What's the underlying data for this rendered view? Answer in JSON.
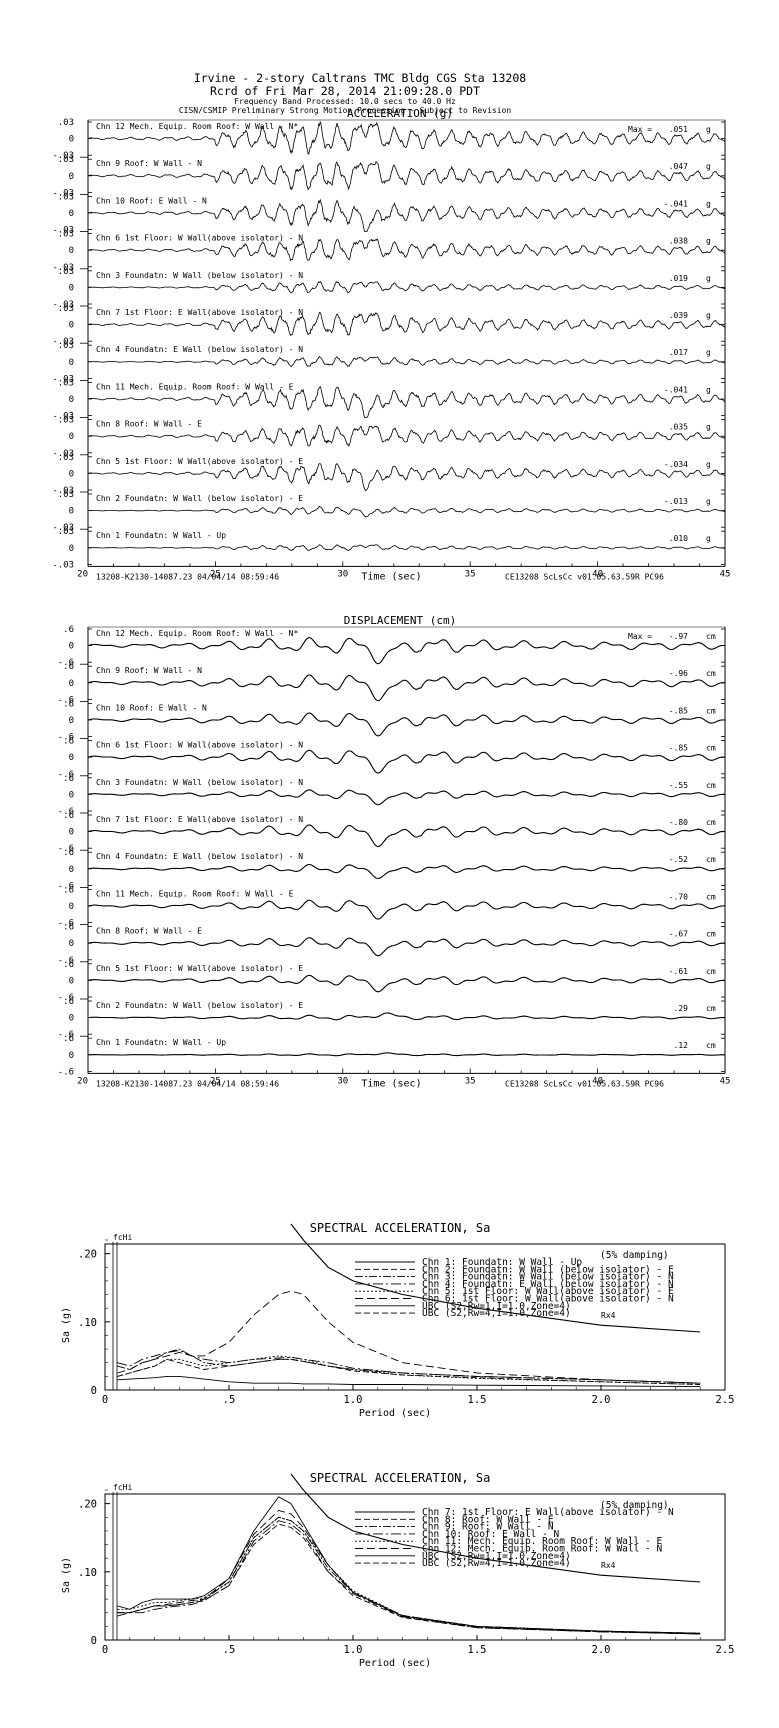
{
  "header": {
    "line1": "Irvine - 2-story Caltrans TMC Bldg      CGS Sta 13208",
    "line2": "Rcrd of Fri Mar 28, 2014 21:09:28.0 PDT",
    "line3": "Frequency Band Processed: 10.0 secs to 40.0 Hz",
    "line4": "CISN/CSMIP Preliminary Strong Motion Processing - Subject to Revision"
  },
  "channels": [
    {
      "label": "Chn 12  Mech. Equip. Room Roof: W Wall - N*",
      "acc_max": ".051",
      "disp_max": "-.97"
    },
    {
      "label": "Chn 9  Roof: W Wall - N",
      "acc_max": ".047",
      "disp_max": "-.96"
    },
    {
      "label": "Chn 10  Roof: E Wall - N",
      "acc_max": "-.041",
      "disp_max": "-.85"
    },
    {
      "label": "Chn 6  1st Floor: W Wall(above isolator) - N",
      "acc_max": ".038",
      "disp_max": "-.85"
    },
    {
      "label": "Chn 3  Foundatn: W Wall (below isolator) - N",
      "acc_max": ".019",
      "disp_max": "-.55"
    },
    {
      "label": "Chn 7  1st Floor: E Wall(above isolator) - N",
      "acc_max": ".039",
      "disp_max": "-.80"
    },
    {
      "label": "Chn 4  Foundatn: E Wall (below isolator) - N",
      "acc_max": ".017",
      "disp_max": "-.52"
    },
    {
      "label": "Chn 11  Mech. Equip. Room Roof: W Wall - E",
      "acc_max": "-.041",
      "disp_max": "-.70"
    },
    {
      "label": "Chn 8  Roof: W Wall - E",
      "acc_max": ".035",
      "disp_max": "-.67"
    },
    {
      "label": "Chn 5  1st Floor: W Wall(above isolator) - E",
      "acc_max": "-.034",
      "disp_max": "-.61"
    },
    {
      "label": "Chn 2  Foundatn: W Wall (below isolator) - E",
      "acc_max": "-.013",
      "disp_max": ".29"
    },
    {
      "label": "Chn 1  Foundatn: W Wall - Up",
      "acc_max": ".010",
      "disp_max": ".12"
    }
  ],
  "acceleration": {
    "title": "ACCELERATION (g)",
    "max_label": "Max =",
    "unit": "g",
    "y_ticks": [
      ".03",
      "0",
      "-.03"
    ],
    "x_ticks": [
      "20",
      "25",
      "30",
      "35",
      "40",
      "45"
    ],
    "xlabel": "Time (sec)",
    "footer_left": "13208-K2130-14087.23 04/04/14 08:59:46",
    "footer_right": "CE13208  ScLsCc  v01.05.63.59R PC96"
  },
  "displacement": {
    "title": "DISPLACEMENT (cm)",
    "max_label": "Max =",
    "unit": "cm",
    "y_ticks": [
      ".6",
      "0",
      "-.6"
    ],
    "x_ticks": [
      "20",
      "25",
      "30",
      "35",
      "40",
      "45"
    ],
    "xlabel": "Time (sec)",
    "footer_left": "13208-K2130-14087.23 04/04/14 08:59:46",
    "footer_right": "CE13208  ScLsCc  v01.05.63.59R PC96"
  },
  "spectra": [
    {
      "title": "SPECTRAL ACCELERATION, Sa",
      "fchi": "fcHi",
      "damping": "(5% damping)",
      "ylabel": "Sa (g)",
      "xlabel": "Period (sec)",
      "y_ticks": [
        ".20",
        ".10",
        "0"
      ],
      "x_ticks": [
        "0",
        ".5",
        "1.0",
        "1.5",
        "2.0",
        "2.5"
      ],
      "rx_label": "Rx4",
      "legend": [
        "Chn 1: Foundatn: W Wall - Up",
        "Chn 2: Foundatn: W Wall (below isolator) - E",
        "Chn 3: Foundatn: W Wall (below isolator) - N",
        "Chn 4: Foundatn: E Wall (below isolator) - N",
        "Chn 5: 1st Floor: W Wall(above isolator) - E",
        "Chn 6: 1st Floor: W Wall(above isolator) - N",
        "UBC (S2,Rw=1,I=1.0,Zone=4)",
        "UBC (S2,Rw=4,I=1.0,Zone=4)"
      ]
    },
    {
      "title": "SPECTRAL ACCELERATION, Sa",
      "fchi": "fcHi",
      "damping": "(5% damping)",
      "ylabel": "Sa (g)",
      "xlabel": "Period (sec)",
      "y_ticks": [
        ".20",
        ".10",
        "0"
      ],
      "x_ticks": [
        "0",
        ".5",
        "1.0",
        "1.5",
        "2.0",
        "2.5"
      ],
      "rx_label": "Rx4",
      "legend": [
        "Chn 7: 1st Floor: E Wall(above isolator) - N",
        "Chn 8: Roof: W Wall - E",
        "Chn 9: Roof: W Wall - N",
        "Chn 10: Roof: E Wall - N",
        "Chn 11: Mech. Equip. Room Roof: W Wall - E",
        "Chn 12: Mech. Equip. Room Roof: W Wall - N",
        "UBC (S2,Rw=1,I=1.0,Zone=4)",
        "UBC (S2,Rw=4,I=1.0,Zone=4)"
      ]
    }
  ],
  "chart_data": [
    {
      "type": "line",
      "title": "ACCELERATION (g)",
      "xlabel": "Time (sec)",
      "ylabel": "",
      "xlim": [
        20,
        45
      ],
      "ylim": [
        -0.03,
        0.03
      ],
      "note": "12 stacked seismogram panels; peak values per channel",
      "series": [
        {
          "name": "Chn 12",
          "peak": 0.051
        },
        {
          "name": "Chn 9",
          "peak": 0.047
        },
        {
          "name": "Chn 10",
          "peak": -0.041
        },
        {
          "name": "Chn 6",
          "peak": 0.038
        },
        {
          "name": "Chn 3",
          "peak": 0.019
        },
        {
          "name": "Chn 7",
          "peak": 0.039
        },
        {
          "name": "Chn 4",
          "peak": 0.017
        },
        {
          "name": "Chn 11",
          "peak": -0.041
        },
        {
          "name": "Chn 8",
          "peak": 0.035
        },
        {
          "name": "Chn 5",
          "peak": -0.034
        },
        {
          "name": "Chn 2",
          "peak": -0.013
        },
        {
          "name": "Chn 1",
          "peak": 0.01
        }
      ]
    },
    {
      "type": "line",
      "title": "DISPLACEMENT (cm)",
      "xlabel": "Time (sec)",
      "ylabel": "",
      "xlim": [
        20,
        45
      ],
      "ylim": [
        -0.6,
        0.6
      ],
      "series": [
        {
          "name": "Chn 12",
          "peak": -0.97
        },
        {
          "name": "Chn 9",
          "peak": -0.96
        },
        {
          "name": "Chn 10",
          "peak": -0.85
        },
        {
          "name": "Chn 6",
          "peak": -0.85
        },
        {
          "name": "Chn 3",
          "peak": -0.55
        },
        {
          "name": "Chn 7",
          "peak": -0.8
        },
        {
          "name": "Chn 4",
          "peak": -0.52
        },
        {
          "name": "Chn 11",
          "peak": -0.7
        },
        {
          "name": "Chn 8",
          "peak": -0.67
        },
        {
          "name": "Chn 5",
          "peak": -0.61
        },
        {
          "name": "Chn 2",
          "peak": 0.29
        },
        {
          "name": "Chn 1",
          "peak": 0.12
        }
      ]
    },
    {
      "type": "line",
      "title": "SPECTRAL ACCELERATION, Sa",
      "xlabel": "Period (sec)",
      "ylabel": "Sa (g)",
      "xlim": [
        0,
        2.5
      ],
      "ylim": [
        0,
        0.22
      ],
      "x": [
        0.05,
        0.1,
        0.15,
        0.2,
        0.25,
        0.3,
        0.35,
        0.4,
        0.5,
        0.6,
        0.7,
        0.75,
        0.8,
        0.9,
        1.0,
        1.2,
        1.5,
        2.0,
        2.4
      ],
      "series": [
        {
          "name": "Chn 1: Foundatn: W Wall - Up",
          "values": [
            0.015,
            0.016,
            0.017,
            0.018,
            0.02,
            0.02,
            0.018,
            0.016,
            0.012,
            0.01,
            0.01,
            0.01,
            0.009,
            0.009,
            0.008,
            0.008,
            0.007,
            0.006,
            0.005
          ]
        },
        {
          "name": "Chn 2: Foundatn: W Wall (below isolator) - E",
          "values": [
            0.02,
            0.025,
            0.03,
            0.035,
            0.045,
            0.04,
            0.035,
            0.03,
            0.035,
            0.04,
            0.045,
            0.045,
            0.042,
            0.035,
            0.028,
            0.022,
            0.018,
            0.012,
            0.008
          ]
        },
        {
          "name": "Chn 3: Foundatn: W Wall (below isolator) - N",
          "values": [
            0.035,
            0.03,
            0.04,
            0.045,
            0.055,
            0.06,
            0.05,
            0.04,
            0.035,
            0.04,
            0.045,
            0.045,
            0.042,
            0.035,
            0.03,
            0.025,
            0.02,
            0.015,
            0.01
          ]
        },
        {
          "name": "Chn 4: Foundatn: E Wall (below isolator) - N",
          "values": [
            0.04,
            0.035,
            0.045,
            0.05,
            0.055,
            0.058,
            0.05,
            0.045,
            0.04,
            0.045,
            0.047,
            0.048,
            0.045,
            0.04,
            0.032,
            0.025,
            0.02,
            0.015,
            0.01
          ]
        },
        {
          "name": "Chn 5: 1st Floor: W Wall(above isolator) - E",
          "values": [
            0.02,
            0.025,
            0.03,
            0.035,
            0.045,
            0.045,
            0.04,
            0.035,
            0.04,
            0.045,
            0.05,
            0.048,
            0.045,
            0.035,
            0.03,
            0.022,
            0.017,
            0.012,
            0.008
          ]
        },
        {
          "name": "Chn 6: 1st Floor: W Wall(above isolator) - N",
          "values": [
            0.025,
            0.03,
            0.04,
            0.045,
            0.05,
            0.055,
            0.05,
            0.05,
            0.07,
            0.11,
            0.14,
            0.145,
            0.14,
            0.1,
            0.07,
            0.04,
            0.025,
            0.015,
            0.01
          ]
        },
        {
          "name": "UBC (S2,Rw=1,I=1.0,Zone=4)",
          "values": [
            null,
            null,
            null,
            null,
            null,
            null,
            null,
            null,
            null,
            null,
            null,
            0.25,
            0.22,
            0.18,
            0.16,
            0.14,
            0.12,
            0.095,
            0.085
          ]
        }
      ]
    },
    {
      "type": "line",
      "title": "SPECTRAL ACCELERATION, Sa",
      "xlabel": "Period (sec)",
      "ylabel": "Sa (g)",
      "xlim": [
        0,
        2.5
      ],
      "ylim": [
        0,
        0.22
      ],
      "x": [
        0.05,
        0.1,
        0.15,
        0.2,
        0.25,
        0.3,
        0.35,
        0.4,
        0.5,
        0.6,
        0.7,
        0.75,
        0.8,
        0.9,
        1.0,
        1.2,
        1.5,
        2.0,
        2.4
      ],
      "series": [
        {
          "name": "Chn 7: 1st Floor: E Wall(above isolator) - N",
          "values": [
            0.05,
            0.045,
            0.055,
            0.06,
            0.06,
            0.06,
            0.06,
            0.065,
            0.09,
            0.16,
            0.21,
            0.2,
            0.17,
            0.11,
            0.07,
            0.035,
            0.02,
            0.013,
            0.01
          ]
        },
        {
          "name": "Chn 8: Roof: W Wall - E",
          "values": [
            0.04,
            0.04,
            0.045,
            0.05,
            0.05,
            0.052,
            0.055,
            0.058,
            0.08,
            0.14,
            0.17,
            0.165,
            0.15,
            0.1,
            0.065,
            0.033,
            0.018,
            0.012,
            0.009
          ]
        },
        {
          "name": "Chn 9: Roof: W Wall - N",
          "values": [
            0.04,
            0.04,
            0.045,
            0.05,
            0.05,
            0.052,
            0.055,
            0.06,
            0.085,
            0.15,
            0.18,
            0.175,
            0.16,
            0.105,
            0.07,
            0.035,
            0.019,
            0.012,
            0.009
          ]
        },
        {
          "name": "Chn 10: Roof: E Wall - N",
          "values": [
            0.035,
            0.04,
            0.04,
            0.045,
            0.048,
            0.05,
            0.052,
            0.058,
            0.08,
            0.145,
            0.175,
            0.17,
            0.155,
            0.1,
            0.068,
            0.034,
            0.018,
            0.012,
            0.009
          ]
        },
        {
          "name": "Chn 11: Mech. Equip. Room Roof: W Wall - E",
          "values": [
            0.045,
            0.045,
            0.05,
            0.055,
            0.055,
            0.058,
            0.06,
            0.062,
            0.085,
            0.15,
            0.18,
            0.175,
            0.16,
            0.11,
            0.072,
            0.036,
            0.02,
            0.013,
            0.009
          ]
        },
        {
          "name": "Chn 12: Mech. Equip. Room Roof: W Wall - N",
          "values": [
            0.04,
            0.04,
            0.045,
            0.05,
            0.052,
            0.055,
            0.058,
            0.06,
            0.09,
            0.155,
            0.19,
            0.185,
            0.165,
            0.11,
            0.07,
            0.036,
            0.02,
            0.013,
            0.01
          ]
        },
        {
          "name": "UBC (S2,Rw=1,I=1.0,Zone=4)",
          "values": [
            null,
            null,
            null,
            null,
            null,
            null,
            null,
            null,
            null,
            null,
            null,
            0.25,
            0.22,
            0.18,
            0.16,
            0.14,
            0.12,
            0.095,
            0.085
          ]
        }
      ]
    }
  ]
}
